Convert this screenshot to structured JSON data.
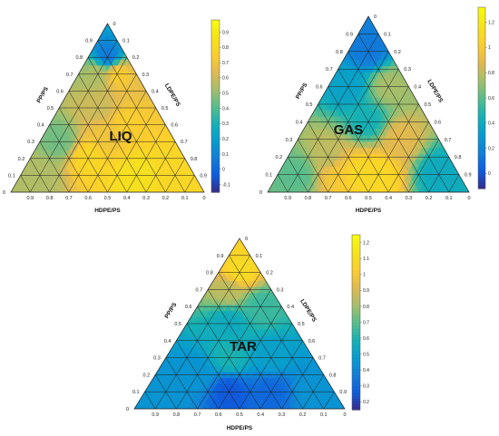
{
  "chart_data": [
    {
      "type": "heatmap",
      "plot_label": "LIQ",
      "axis_labels": {
        "bottom": "HDPE/PS",
        "left": "PP/PS",
        "right": "LDPE/PS"
      },
      "ticks": [
        "0",
        "0.1",
        "0.2",
        "0.3",
        "0.4",
        "0.5",
        "0.6",
        "0.7",
        "0.8",
        "0.9"
      ],
      "colorbar": {
        "range": [
          -0.15,
          0.98
        ],
        "ticks": [
          "-0.1",
          "0",
          "0.1",
          "0.2",
          "0.3",
          "0.4",
          "0.5",
          "0.6",
          "0.7",
          "0.8",
          "0.9"
        ]
      },
      "field": [
        {
          "hdpe": 0.1,
          "ldpe": 0.1,
          "pp": 0.8,
          "value": 0.05
        },
        {
          "hdpe": 0.2,
          "ldpe": 0.1,
          "pp": 0.7,
          "value": 0.55
        },
        {
          "hdpe": 0.1,
          "ldpe": 0.2,
          "pp": 0.7,
          "value": 0.75
        },
        {
          "hdpe": 0.3,
          "ldpe": 0.2,
          "pp": 0.5,
          "value": 0.6
        },
        {
          "hdpe": 0.2,
          "ldpe": 0.4,
          "pp": 0.4,
          "value": 0.75
        },
        {
          "hdpe": 0.6,
          "ldpe": 0.1,
          "pp": 0.3,
          "value": 0.45
        },
        {
          "hdpe": 0.8,
          "ldpe": 0.1,
          "pp": 0.1,
          "value": 0.55
        },
        {
          "hdpe": 0.5,
          "ldpe": 0.3,
          "pp": 0.2,
          "value": 0.8
        },
        {
          "hdpe": 0.3,
          "ldpe": 0.6,
          "pp": 0.1,
          "value": 0.85
        },
        {
          "hdpe": 0.1,
          "ldpe": 0.8,
          "pp": 0.1,
          "value": 0.8
        },
        {
          "hdpe": 0.33,
          "ldpe": 0.33,
          "pp": 0.34,
          "value": 0.7
        }
      ]
    },
    {
      "type": "heatmap",
      "plot_label": "GAS",
      "axis_labels": {
        "bottom": "HDPE/PS",
        "left": "PP/PS",
        "right": "LDPE/PS"
      },
      "ticks": [
        "0",
        "0.1",
        "0.2",
        "0.3",
        "0.4",
        "0.5",
        "0.6",
        "0.7",
        "0.8",
        "0.9"
      ],
      "colorbar": {
        "range": [
          -0.12,
          1.32
        ],
        "ticks": [
          "0",
          "0.2",
          "0.4",
          "0.6",
          "0.8",
          "1",
          "1.2"
        ]
      },
      "field": [
        {
          "hdpe": 0.1,
          "ldpe": 0.1,
          "pp": 0.8,
          "value": 0.15
        },
        {
          "hdpe": 0.1,
          "ldpe": 0.3,
          "pp": 0.6,
          "value": 0.75
        },
        {
          "hdpe": 0.3,
          "ldpe": 0.1,
          "pp": 0.6,
          "value": 0.35
        },
        {
          "hdpe": 0.3,
          "ldpe": 0.3,
          "pp": 0.4,
          "value": 0.45
        },
        {
          "hdpe": 0.2,
          "ldpe": 0.5,
          "pp": 0.3,
          "value": 0.9
        },
        {
          "hdpe": 0.6,
          "ldpe": 0.2,
          "pp": 0.2,
          "value": 0.8
        },
        {
          "hdpe": 0.5,
          "ldpe": 0.4,
          "pp": 0.1,
          "value": 1.1
        },
        {
          "hdpe": 0.8,
          "ldpe": 0.1,
          "pp": 0.1,
          "value": 0.6
        },
        {
          "hdpe": 0.4,
          "ldpe": 0.5,
          "pp": 0.1,
          "value": 1.1
        },
        {
          "hdpe": 0.1,
          "ldpe": 0.8,
          "pp": 0.1,
          "value": 0.4
        },
        {
          "hdpe": 0.6,
          "ldpe": 0.3,
          "pp": 0.1,
          "value": 1.0
        }
      ]
    },
    {
      "type": "heatmap",
      "plot_label": "TAR",
      "axis_labels": {
        "bottom": "HDPE/PS",
        "left": "PP/PS",
        "right": "LDPE/PS"
      },
      "ticks": [
        "0",
        "0.1",
        "0.2",
        "0.3",
        "0.4",
        "0.5",
        "0.6",
        "0.7",
        "0.8",
        "0.9"
      ],
      "colorbar": {
        "range": [
          0.15,
          1.25
        ],
        "ticks": [
          "0.2",
          "0.3",
          "0.4",
          "0.5",
          "0.6",
          "0.7",
          "0.8",
          "0.9",
          "1",
          "1.1",
          "1.2"
        ]
      },
      "field": [
        {
          "hdpe": 0.1,
          "ldpe": 0.1,
          "pp": 0.8,
          "value": 1.1
        },
        {
          "hdpe": 0.2,
          "ldpe": 0.1,
          "pp": 0.7,
          "value": 0.85
        },
        {
          "hdpe": 0.1,
          "ldpe": 0.3,
          "pp": 0.6,
          "value": 0.65
        },
        {
          "hdpe": 0.3,
          "ldpe": 0.2,
          "pp": 0.5,
          "value": 0.55
        },
        {
          "hdpe": 0.4,
          "ldpe": 0.3,
          "pp": 0.3,
          "value": 0.6
        },
        {
          "hdpe": 0.2,
          "ldpe": 0.5,
          "pp": 0.3,
          "value": 0.5
        },
        {
          "hdpe": 0.6,
          "ldpe": 0.2,
          "pp": 0.2,
          "value": 0.45
        },
        {
          "hdpe": 0.5,
          "ldpe": 0.4,
          "pp": 0.1,
          "value": 0.25
        },
        {
          "hdpe": 0.8,
          "ldpe": 0.1,
          "pp": 0.1,
          "value": 0.45
        },
        {
          "hdpe": 0.1,
          "ldpe": 0.8,
          "pp": 0.1,
          "value": 0.45
        },
        {
          "hdpe": 0.3,
          "ldpe": 0.6,
          "pp": 0.1,
          "value": 0.3
        }
      ]
    }
  ]
}
